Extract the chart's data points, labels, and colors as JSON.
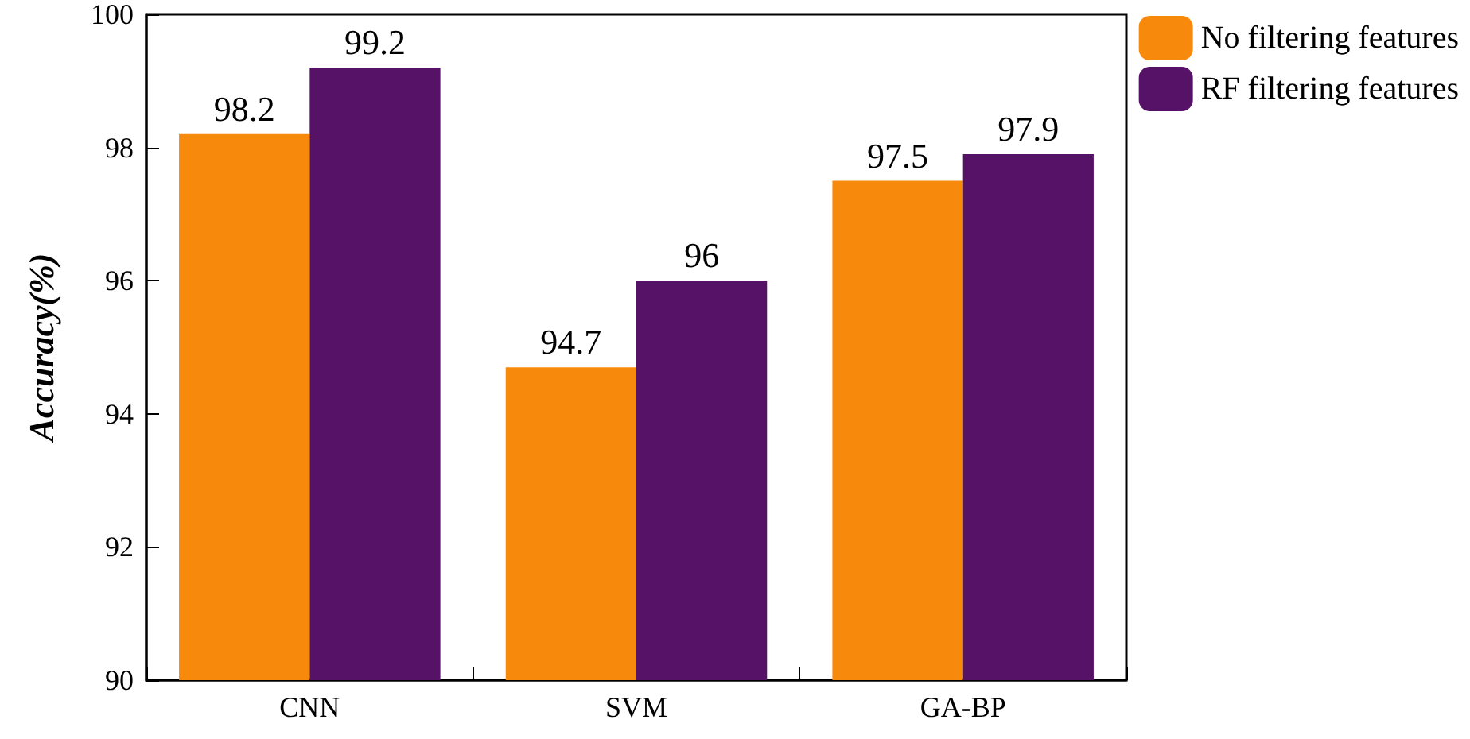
{
  "chart_data": {
    "type": "bar",
    "ylabel": "Accuracy(%)",
    "categories": [
      "CNN",
      "SVM",
      "GA-BP"
    ],
    "series": [
      {
        "name": "No filtering features",
        "color": "#f78a0d",
        "values": [
          98.2,
          94.7,
          97.5
        ]
      },
      {
        "name": "RF filtering features",
        "color": "#561266",
        "values": [
          99.2,
          96,
          97.9
        ]
      }
    ],
    "ylim": [
      90,
      100
    ],
    "yticks": [
      90,
      92,
      94,
      96,
      98,
      100
    ],
    "data_labels": true,
    "legend": "top right",
    "grid": false
  }
}
